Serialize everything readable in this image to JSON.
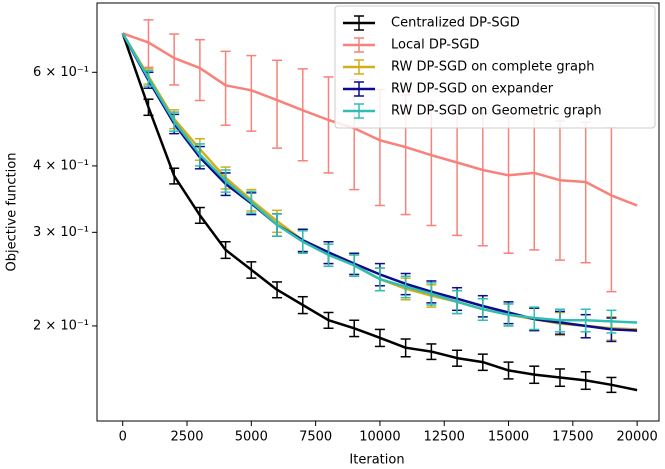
{
  "chart_data": {
    "type": "line",
    "xlabel": "Iteration",
    "ylabel": "Objective function",
    "x": [
      0,
      1000,
      2000,
      3000,
      4000,
      5000,
      6000,
      7000,
      8000,
      9000,
      10000,
      11000,
      12000,
      13000,
      14000,
      15000,
      16000,
      17000,
      18000,
      19000,
      20000
    ],
    "series": [
      {
        "name": "Centralized DP-SGD",
        "color": "#000000",
        "values": [
          0.71,
          0.516,
          0.383,
          0.323,
          0.278,
          0.255,
          0.234,
          0.219,
          0.205,
          0.198,
          0.19,
          0.182,
          0.179,
          0.174,
          0.171,
          0.165,
          0.162,
          0.16,
          0.158,
          0.155,
          0.1515
        ],
        "errors": [
          null,
          0.018,
          0.013,
          0.011,
          0.01,
          0.009,
          0.008,
          0.008,
          0.007,
          0.007,
          0.007,
          0.007,
          0.006,
          0.006,
          0.006,
          0.006,
          0.006,
          0.006,
          0.006,
          0.005,
          null
        ]
      },
      {
        "name": "Local DP-SGD",
        "color": "#f8817a",
        "values": [
          0.71,
          0.683,
          0.638,
          0.611,
          0.567,
          0.555,
          0.532,
          0.509,
          0.488,
          0.471,
          0.447,
          0.434,
          0.419,
          0.406,
          0.393,
          0.384,
          0.388,
          0.376,
          0.373,
          0.352,
          0.337
        ],
        "errors": [
          null,
          0.07,
          0.07,
          0.08,
          0.09,
          0.09,
          0.1,
          0.1,
          0.1,
          0.11,
          0.11,
          0.11,
          0.11,
          0.11,
          0.11,
          0.11,
          0.11,
          0.11,
          0.11,
          0.12,
          null
        ]
      },
      {
        "name": "RW DP-SGD on complete graph",
        "color": "#d4ae1a",
        "values": [
          0.71,
          0.59,
          0.49,
          0.43,
          0.38,
          0.345,
          0.315,
          0.29,
          0.275,
          0.26,
          0.245,
          0.235,
          0.228,
          0.222,
          0.215,
          0.21,
          0.206,
          0.202,
          0.2,
          0.198,
          0.197
        ],
        "errors": [
          null,
          0.02,
          0.02,
          0.02,
          0.018,
          0.016,
          0.015,
          0.014,
          0.013,
          0.012,
          0.012,
          0.011,
          0.011,
          0.011,
          0.01,
          0.01,
          0.01,
          0.01,
          0.01,
          0.01,
          null
        ]
      },
      {
        "name": "RW DP-SGD on expander",
        "color": "#0b0b8c",
        "values": [
          0.71,
          0.58,
          0.48,
          0.415,
          0.37,
          0.34,
          0.31,
          0.29,
          0.275,
          0.262,
          0.25,
          0.24,
          0.232,
          0.225,
          0.218,
          0.212,
          0.206,
          0.203,
          0.2,
          0.197,
          0.196
        ],
        "errors": [
          null,
          0.02,
          0.02,
          0.02,
          0.018,
          0.016,
          0.015,
          0.014,
          0.013,
          0.012,
          0.012,
          0.011,
          0.011,
          0.011,
          0.01,
          0.01,
          0.01,
          0.01,
          0.01,
          0.01,
          null
        ]
      },
      {
        "name": "RW DP-SGD on Geometric graph",
        "color": "#2fbfb2",
        "values": [
          0.71,
          0.585,
          0.485,
          0.42,
          0.375,
          0.342,
          0.31,
          0.288,
          0.272,
          0.26,
          0.245,
          0.237,
          0.23,
          0.222,
          0.215,
          0.21,
          0.207,
          0.205,
          0.205,
          0.204,
          0.203
        ],
        "errors": [
          null,
          0.02,
          0.02,
          0.02,
          0.018,
          0.016,
          0.015,
          0.014,
          0.013,
          0.012,
          0.012,
          0.011,
          0.011,
          0.011,
          0.01,
          0.01,
          0.01,
          0.01,
          0.01,
          0.01,
          null
        ]
      }
    ],
    "xlim": [
      -1000,
      20850
    ],
    "xticks": [
      0,
      2500,
      5000,
      7500,
      10000,
      12500,
      15000,
      17500,
      20000
    ],
    "ylim": [
      0.1325,
      0.81
    ],
    "yscale": "log",
    "yticks": [
      {
        "value": 0.2,
        "label": "2 × 10⁻¹"
      },
      {
        "value": 0.3,
        "label": "3 × 10⁻¹"
      },
      {
        "value": 0.4,
        "label": "4 × 10⁻¹"
      },
      {
        "value": 0.6,
        "label": "6 × 10⁻¹"
      }
    ],
    "legend": "upper right",
    "grid": false
  }
}
